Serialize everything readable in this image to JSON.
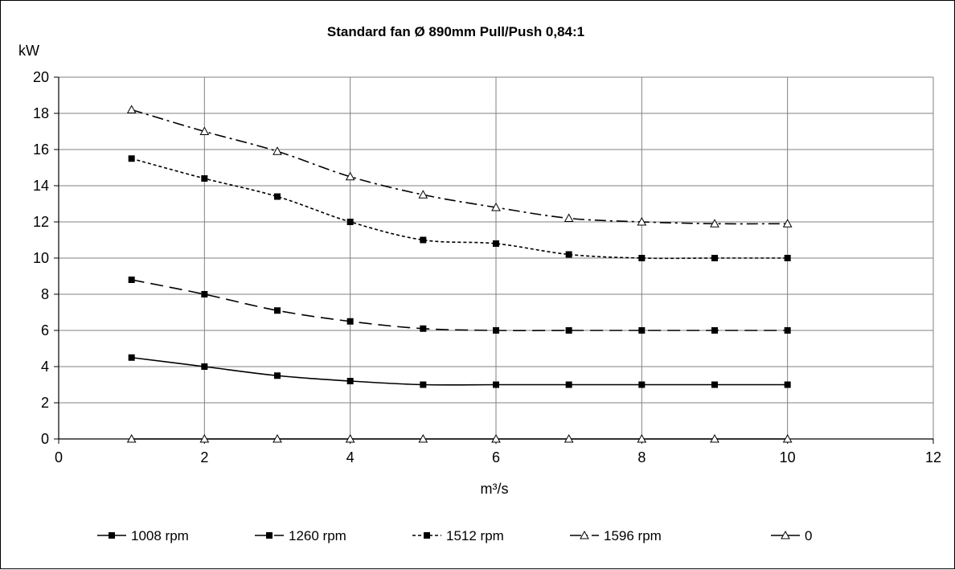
{
  "chart_data": {
    "type": "line",
    "title": "Standard fan Ø 890mm  Pull/Push 0,84:1",
    "xlabel": "m³/s",
    "ylabel": "kW",
    "xlim": [
      0,
      12
    ],
    "ylim": [
      0,
      20
    ],
    "xticks": [
      0,
      2,
      4,
      6,
      8,
      10,
      12
    ],
    "yticks": [
      0,
      2,
      4,
      6,
      8,
      10,
      12,
      14,
      16,
      18,
      20
    ],
    "grid": true,
    "legend_position": "bottom",
    "x": [
      1,
      2,
      3,
      4,
      5,
      6,
      7,
      8,
      9,
      10
    ],
    "series": [
      {
        "name": "1008 rpm",
        "values": [
          4.5,
          4.0,
          3.5,
          3.2,
          3.0,
          3.0,
          3.0,
          3.0,
          3.0,
          3.0
        ],
        "dash": "solid",
        "marker": "square"
      },
      {
        "name": "1260 rpm",
        "values": [
          8.8,
          8.0,
          7.1,
          6.5,
          6.1,
          6.0,
          6.0,
          6.0,
          6.0,
          6.0
        ],
        "dash": "longdash",
        "marker": "square"
      },
      {
        "name": "1512 rpm",
        "values": [
          15.5,
          14.4,
          13.4,
          12.0,
          11.0,
          10.8,
          10.2,
          10.0,
          10.0,
          10.0
        ],
        "dash": "shortdash",
        "marker": "square"
      },
      {
        "name": "1596 rpm",
        "values": [
          18.2,
          17.0,
          15.9,
          14.5,
          13.5,
          12.8,
          12.2,
          12.0,
          11.9,
          11.9
        ],
        "dash": "dashdot",
        "marker": "triangle"
      },
      {
        "name": "0",
        "values": [
          0,
          0,
          0,
          0,
          0,
          0,
          0,
          0,
          0,
          0
        ],
        "dash": "solid",
        "marker": "triangle"
      }
    ]
  }
}
